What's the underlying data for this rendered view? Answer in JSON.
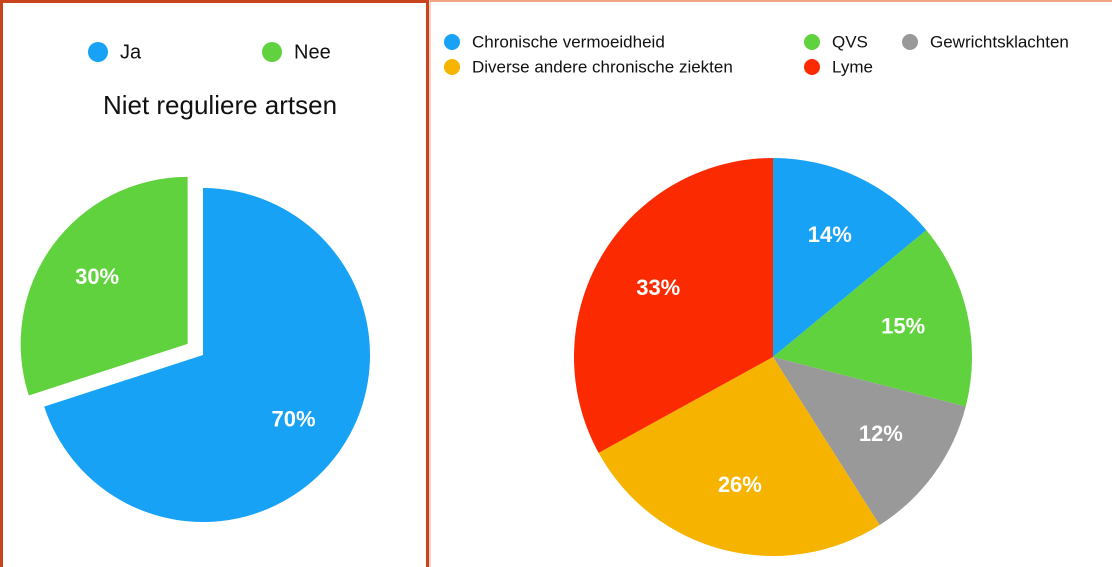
{
  "chart_data": [
    {
      "type": "pie",
      "title": "Niet reguliere artsen",
      "categories": [
        "Ja",
        "Nee"
      ],
      "values": [
        70,
        30
      ],
      "value_labels": [
        "70%",
        "30%"
      ],
      "colors": [
        "#17a2f5",
        "#5fd23d"
      ],
      "explode": [
        false,
        true
      ],
      "legend": "top"
    },
    {
      "type": "pie",
      "categories": [
        "Chronische vermoeidheid",
        "QVS",
        "Gewrichtsklachten",
        "Diverse andere chronische ziekten",
        "Lyme"
      ],
      "values": [
        14,
        15,
        12,
        26,
        33
      ],
      "value_labels": [
        "14%",
        "15%",
        "12%",
        "26%",
        "33%"
      ],
      "colors": [
        "#17a2f5",
        "#5fd23d",
        "#999999",
        "#f6b400",
        "#fb2a00"
      ],
      "legend": "top"
    }
  ]
}
